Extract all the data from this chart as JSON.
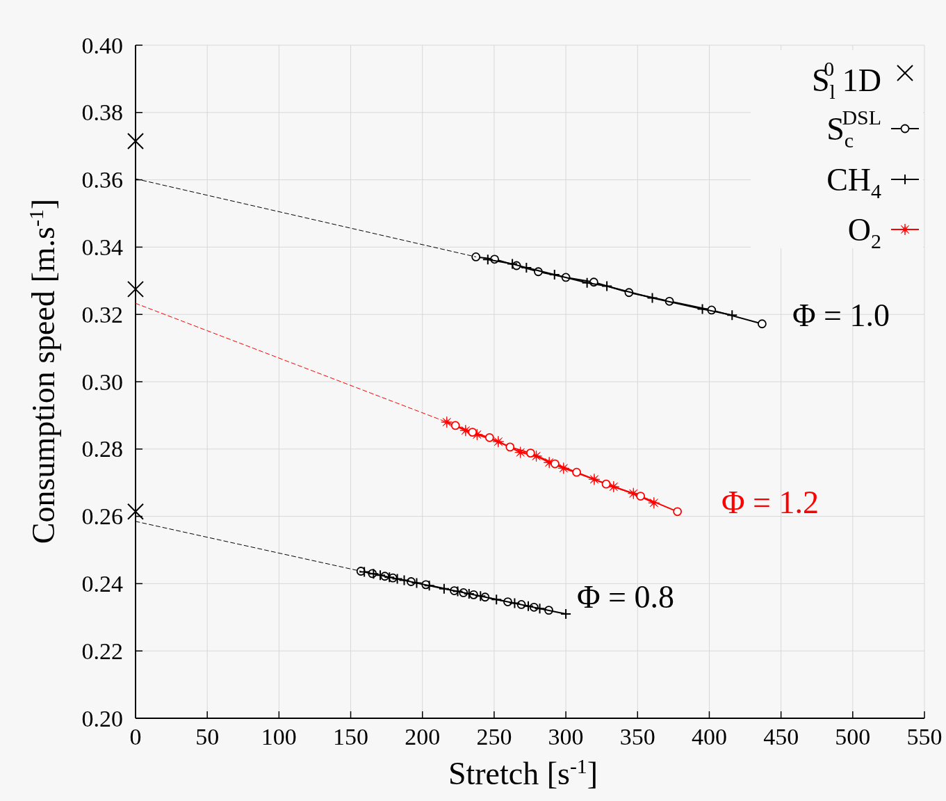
{
  "chart_data": {
    "type": "line",
    "xlabel": "Stretch [s$^{-1}$]",
    "ylabel": "Consumption speed  [m.s$^{-1}$]",
    "xlim": [
      0,
      550
    ],
    "xticks": [
      0,
      50,
      100,
      150,
      200,
      250,
      300,
      350,
      400,
      450,
      500,
      550
    ],
    "ylim": [
      0.2,
      0.4
    ],
    "yticks": [
      {
        "value": 0.2,
        "label": "0.20"
      },
      {
        "value": 0.22,
        "label": "0.22"
      },
      {
        "value": 0.24,
        "label": "0.24"
      },
      {
        "value": 0.26,
        "label": "0.26"
      },
      {
        "value": 0.28,
        "label": "0.28"
      },
      {
        "value": 0.3,
        "label": "0.30"
      },
      {
        "value": 0.32,
        "label": "0.32"
      },
      {
        "value": 0.34,
        "label": "0.34"
      },
      {
        "value": 0.36,
        "label": "0.36"
      },
      {
        "value": 0.38,
        "label": "0.38"
      },
      {
        "value": 0.4,
        "label": "0.40"
      }
    ],
    "grid": true,
    "legend": "top right",
    "series": [
      {
        "name": "S$_{l}$$^{0}$ 1D",
        "type": "scatter",
        "marker": "cross",
        "color": "#000000",
        "x": [
          0,
          0,
          0
        ],
        "values": [
          0.3715,
          0.3275,
          0.2614
        ]
      },
      {
        "name": "S$_{c}$$^{DSL}$",
        "marker": "circle",
        "color": "#000000",
        "x": [
          237.3,
          250.3,
          265.6,
          280.8,
          300.0,
          319.5,
          344.0,
          372.2,
          401.6,
          436.8
        ],
        "values": [
          0.3371,
          0.3364,
          0.3345,
          0.3327,
          0.331,
          0.3296,
          0.3265,
          0.3239,
          0.3213,
          0.3172
        ]
      },
      {
        "name": "CH$_{4}$",
        "marker": "plus",
        "color": "#000000",
        "x": [
          245.6,
          262.7,
          272.5,
          292.1,
          314.8,
          328.6,
          360.3,
          395.2,
          415.9
        ],
        "values": [
          0.3363,
          0.335,
          0.3339,
          0.3318,
          0.3294,
          0.3284,
          0.3249,
          0.3216,
          0.3198
        ]
      },
      {
        "name": "O$_{2}$",
        "marker": "star",
        "color": "#ff0000",
        "x": [
          217.0,
          230.1,
          238.1,
          252.9,
          268.3,
          279.4,
          288.4,
          298.4,
          319.8,
          333.3,
          347.1,
          361.4
        ],
        "values": [
          0.288,
          0.2855,
          0.2843,
          0.2822,
          0.279,
          0.2779,
          0.276,
          0.2743,
          0.271,
          0.2688,
          0.2668,
          0.264
        ]
      },
      {
        "marker": "circle",
        "color": "#ff0000",
        "x": [
          223.0,
          234.9,
          246.8,
          261.1,
          275.4,
          292.4,
          307.5,
          328.1,
          352.1,
          377.8
        ],
        "values": [
          0.287,
          0.285,
          0.2834,
          0.2806,
          0.2788,
          0.2756,
          0.2731,
          0.2696,
          0.266,
          0.2614
        ]
      },
      {
        "marker": "circle",
        "color": "#000000",
        "x": [
          157.1,
          165.1,
          173.8,
          179.4,
          192.1,
          202.4,
          222.2,
          228.6,
          235.7,
          243.7,
          259.5,
          269.0,
          277.8,
          288.1
        ],
        "values": [
          0.2437,
          0.243,
          0.2422,
          0.2417,
          0.2406,
          0.2397,
          0.2379,
          0.2373,
          0.2367,
          0.236,
          0.2346,
          0.2338,
          0.233,
          0.2321
        ]
      },
      {
        "marker": "plus",
        "color": "#000000",
        "x": [
          159.5,
          165.9,
          170.6,
          177.0,
          182.5,
          187.3,
          196.0,
          204.8,
          215.1,
          224.6,
          232.5,
          240.5,
          251.6,
          264.3,
          273.8,
          281.8,
          300.0
        ],
        "values": [
          0.2435,
          0.2429,
          0.2425,
          0.2419,
          0.2414,
          0.241,
          0.2402,
          0.2394,
          0.2385,
          0.2377,
          0.237,
          0.2363,
          0.2353,
          0.2342,
          0.2333,
          0.2326,
          0.231
        ]
      },
      {
        "marker": "none",
        "line_style": "dashed",
        "color": "#000000",
        "x": [
          0,
          237.3
        ],
        "values": [
          0.3603,
          0.3371
        ]
      },
      {
        "marker": "none",
        "line_style": "dashed",
        "color": "#ff0000",
        "x": [
          0,
          217.0
        ],
        "values": [
          0.3233,
          0.288
        ]
      },
      {
        "marker": "none",
        "line_style": "dashed",
        "color": "#000000",
        "x": [
          0,
          157.1
        ],
        "values": [
          0.2585,
          0.2437
        ]
      }
    ],
    "annotations": [
      "Φ = 1.0",
      "Φ = 1.2",
      "Φ = 0.8"
    ]
  }
}
